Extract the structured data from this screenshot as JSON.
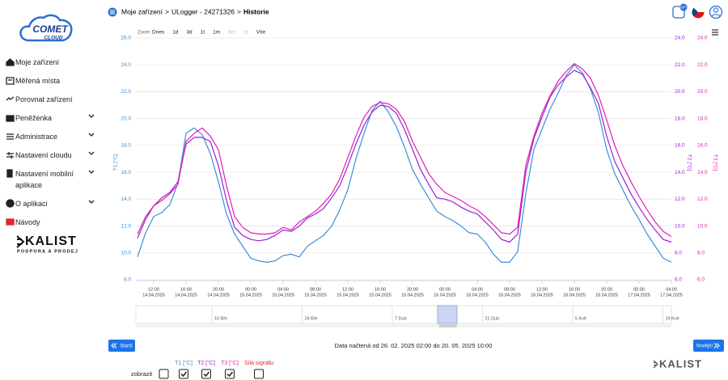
{
  "sidebar": {
    "logo": {
      "brand": "COMET",
      "sub": "CLOUD"
    },
    "menu": [
      {
        "label": "Moje zařízení",
        "expandable": false
      },
      {
        "label": "Měřená místa",
        "expandable": false
      },
      {
        "label": "Porovnat zařízení",
        "expandable": false
      },
      {
        "label": "Peněženka",
        "expandable": true
      },
      {
        "label": "Administrace",
        "expandable": true
      },
      {
        "label": "Nastavení cloudu",
        "expandable": true
      },
      {
        "label": "Nastavení mobilní aplikace",
        "expandable": true
      },
      {
        "label": "O aplikaci",
        "expandable": true
      },
      {
        "label": "Návody",
        "expandable": false
      }
    ],
    "partner": {
      "name": "KALIST",
      "tagline": "PODPORA A PRODEJ"
    }
  },
  "header": {
    "breadcrumb": [
      "Moje zařízení",
      "ULogger - 24271326",
      "Historie"
    ],
    "separator": ">",
    "notification_badge": "50+"
  },
  "zoom": {
    "label": "Zoom",
    "buttons": [
      {
        "label": "Dnes",
        "enabled": true
      },
      {
        "label": "1d",
        "enabled": true
      },
      {
        "label": "3d",
        "enabled": true
      },
      {
        "label": "1t",
        "enabled": true
      },
      {
        "label": "1m",
        "enabled": true
      },
      {
        "label": "6m",
        "enabled": false
      },
      {
        "label": "1r",
        "enabled": false
      },
      {
        "label": "Vše",
        "enabled": true
      }
    ]
  },
  "chart_data": {
    "type": "line",
    "ylabel": "T1 [°C]",
    "y2label": "T2 [°C]",
    "y3label": "T3 [°C]",
    "grid": true,
    "categories": [
      null,
      null,
      "12:00",
      null,
      null,
      null,
      "16:00",
      null,
      null,
      null,
      "20:00",
      null,
      null,
      null,
      "00:00",
      null,
      null,
      null,
      "04:00",
      null,
      null,
      null,
      "08:00",
      null,
      null,
      null,
      "12:00",
      null,
      null,
      null,
      "16:00",
      null,
      null,
      null,
      "20:00",
      null,
      null,
      null,
      "00:00",
      null,
      null,
      null,
      "04:00",
      null,
      null,
      null,
      "08:00",
      null,
      null,
      null,
      "12:00",
      null,
      null,
      null,
      "16:00",
      null,
      null,
      null,
      "20:00",
      null,
      null,
      null,
      "00:00",
      null,
      null,
      null,
      "04:00"
    ],
    "category_dates": [
      null,
      null,
      "14.04.2025",
      null,
      null,
      null,
      "14.04.2025",
      null,
      null,
      null,
      "14.04.2025",
      null,
      null,
      null,
      "15.04.2025",
      null,
      null,
      null,
      "15.04.2025",
      null,
      null,
      null,
      "15.04.2025",
      null,
      null,
      null,
      "15.04.2025",
      null,
      null,
      null,
      "15.04.2025",
      null,
      null,
      null,
      "15.04.2025",
      null,
      null,
      null,
      "16.04.2025",
      null,
      null,
      null,
      "16.04.2025",
      null,
      null,
      null,
      "16.04.2025",
      null,
      null,
      null,
      "16.04.2025",
      null,
      null,
      null,
      "16.04.2025",
      null,
      null,
      null,
      "16.04.2025",
      null,
      null,
      null,
      "17.04.2025",
      null,
      null,
      null,
      "17.04.2025"
    ],
    "ylim": [
      8,
      26
    ],
    "yticks": [
      {
        "value": 8,
        "label": "8.0"
      },
      {
        "value": 10,
        "label": "10.0"
      },
      {
        "value": 12,
        "label": "12.0"
      },
      {
        "value": 14,
        "label": "14.0"
      },
      {
        "value": 16,
        "label": "16.0"
      },
      {
        "value": 18,
        "label": "18.0"
      },
      {
        "value": 20,
        "label": "20.0"
      },
      {
        "value": 22,
        "label": "22.0"
      },
      {
        "value": 24,
        "label": "24.0"
      },
      {
        "value": 26,
        "label": "26.0"
      }
    ],
    "y2lim": [
      6,
      24
    ],
    "y2ticks": [
      {
        "value": 6,
        "label": "6.0"
      },
      {
        "value": 8,
        "label": "8.0"
      },
      {
        "value": 10,
        "label": "10.0"
      },
      {
        "value": 12,
        "label": "12.0"
      },
      {
        "value": 14,
        "label": "14.0"
      },
      {
        "value": 16,
        "label": "16.0"
      },
      {
        "value": 18,
        "label": "18.0"
      },
      {
        "value": 20,
        "label": "20.0"
      },
      {
        "value": 22,
        "label": "22.0"
      },
      {
        "value": 24,
        "label": "24.0"
      }
    ],
    "y3lim": [
      6,
      24
    ],
    "y3ticks": [
      {
        "value": 6,
        "label": "6.0"
      },
      {
        "value": 8,
        "label": "8.0"
      },
      {
        "value": 10,
        "label": "10.0"
      },
      {
        "value": 12,
        "label": "12.0"
      },
      {
        "value": 14,
        "label": "14.0"
      },
      {
        "value": 16,
        "label": "16.0"
      },
      {
        "value": 18,
        "label": "18.0"
      },
      {
        "value": 20,
        "label": "20.0"
      },
      {
        "value": 22,
        "label": "22.0"
      },
      {
        "value": 24,
        "label": "24.0"
      }
    ],
    "series": [
      {
        "name": "T1 [°C]",
        "color": "#3a8fd9",
        "axis": "y",
        "values": [
          9.7,
          11.5,
          12.7,
          13.0,
          13.6,
          15.2,
          18.9,
          19.3,
          18.8,
          17.4,
          15.3,
          12.9,
          11.4,
          10.5,
          9.6,
          9.4,
          9.3,
          9.4,
          9.8,
          9.9,
          9.7,
          10.5,
          10.9,
          11.3,
          12.0,
          13.2,
          14.7,
          17.0,
          18.9,
          20.6,
          21.3,
          20.5,
          19.4,
          17.9,
          16.2,
          15.1,
          14.1,
          13.1,
          12.7,
          12.4,
          12.0,
          11.5,
          11.4,
          10.8,
          9.9,
          9.3,
          9.3,
          10.1,
          14.4,
          17.7,
          19.2,
          20.7,
          21.9,
          23.2,
          24.0,
          23.4,
          22.2,
          20.4,
          17.7,
          15.9,
          14.7,
          13.5,
          12.5,
          11.4,
          10.5,
          9.6,
          9.3
        ]
      },
      {
        "name": "T2 [°C]",
        "color": "#9b1fd6",
        "axis": "y2",
        "values": [
          9.1,
          10.5,
          11.5,
          12.1,
          12.5,
          13.3,
          16.1,
          16.6,
          16.6,
          16.3,
          14.5,
          11.9,
          9.9,
          9.3,
          9.0,
          8.9,
          9.0,
          9.3,
          9.7,
          9.6,
          10.0,
          10.6,
          10.9,
          11.3,
          12.1,
          13.0,
          14.5,
          16.1,
          17.5,
          18.5,
          19.0,
          18.9,
          18.4,
          17.2,
          15.7,
          14.2,
          13.1,
          12.1,
          12.0,
          11.8,
          11.4,
          11.1,
          10.9,
          10.3,
          9.7,
          9.0,
          8.8,
          9.4,
          14.0,
          16.5,
          18.1,
          19.6,
          20.5,
          21.1,
          21.6,
          21.3,
          20.3,
          19.1,
          16.7,
          14.8,
          13.6,
          12.4,
          11.4,
          10.5,
          9.7,
          9.0,
          8.8
        ]
      },
      {
        "name": "T3 [°C]",
        "color": "#e01fb4",
        "axis": "y3",
        "values": [
          9.4,
          10.7,
          11.5,
          11.9,
          12.4,
          13.1,
          16.3,
          16.9,
          17.3,
          16.7,
          15.7,
          13.0,
          10.7,
          9.9,
          9.5,
          9.4,
          9.4,
          9.5,
          9.9,
          9.7,
          10.3,
          10.7,
          11.1,
          11.7,
          12.4,
          13.5,
          15.1,
          16.7,
          18.1,
          18.9,
          19.2,
          19.1,
          18.7,
          17.8,
          16.3,
          15.1,
          13.9,
          13.1,
          12.5,
          12.2,
          11.9,
          11.5,
          11.2,
          10.7,
          10.1,
          9.5,
          9.4,
          9.9,
          14.5,
          16.7,
          18.4,
          19.7,
          20.8,
          21.5,
          22.1,
          21.7,
          21.0,
          19.7,
          17.9,
          16.0,
          14.5,
          13.3,
          12.2,
          11.2,
          10.3,
          9.6,
          9.2
        ]
      }
    ]
  },
  "navigator": {
    "labels": [
      "10 Bře",
      "24 Bře",
      "7 Dub",
      "21 Dub",
      "5 Kvě",
      "19 Kvě"
    ]
  },
  "footer": {
    "older": "Starší",
    "newer": "Novější",
    "range_text": "Data načtená od 26. 02. 2025 02:00 do 20. 05. 2025 10:00",
    "show_label": "zobrazit",
    "toggle_all_checked": false,
    "toggles": [
      {
        "label": "T1 [°C]",
        "color": "#3a8fd9",
        "checked": true
      },
      {
        "label": "T2 [°C]",
        "color": "#9b1fd6",
        "checked": true
      },
      {
        "label": "T3 [°C]",
        "color": "#e01fb4",
        "checked": true
      },
      {
        "label": "Síla signálu",
        "color": "#e0262e",
        "checked": false
      }
    ],
    "brand": "KALIST"
  }
}
